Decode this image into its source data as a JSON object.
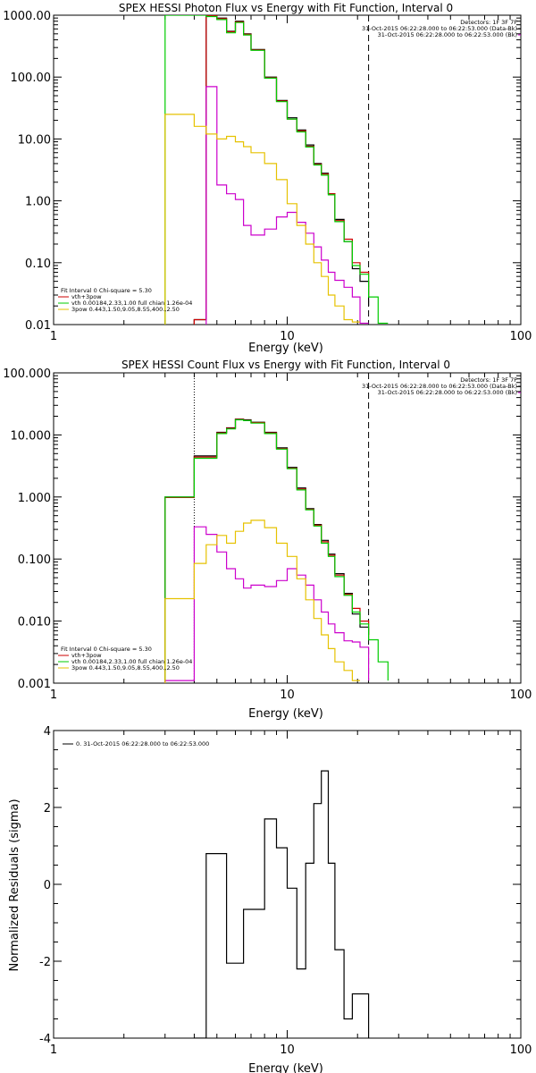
{
  "figure": {
    "tick_labels_x": [
      "1",
      "10",
      "100"
    ]
  },
  "chart_data": [
    {
      "type": "line",
      "title": "SPEX HESSI Photon Flux vs Energy with Fit Function, Interval 0",
      "xlabel": "Energy (keV)",
      "ylabel": "",
      "xscale": "log",
      "yscale": "log",
      "xlim": [
        1,
        100
      ],
      "ylim": [
        0.01,
        1000
      ],
      "yticks": [
        0.01,
        0.1,
        1,
        10,
        100,
        1000
      ],
      "ytick_labels": [
        "0.01",
        "0.10",
        "1.00",
        "10.00",
        "100.00",
        "1000.00"
      ],
      "vlines": [
        {
          "x": 22.3,
          "style": "dashed",
          "color": "#000000"
        }
      ],
      "info_lines": [
        "Detectors: 1F 3F 7F",
        "31-Oct-2015 06:22:28.000 to 06:22:53.000 (Data-Bk)",
        "31-Oct-2015 06:22:28.000 to 06:22:53.000 (Bk)"
      ],
      "info_colors": [
        "#000000",
        "#000000",
        "#cc00cc"
      ],
      "fit_lines": [
        "Fit Interval 0   Chi-square = 5.30",
        "vth+3pow",
        "vth 0.00184,2.33,1.00  full chian 1.26e-04",
        "3pow 0.443,1.50,9.05,8.55,400.,2.50"
      ],
      "fit_colors": [
        "#000000",
        "#cc0000",
        "#00cc00",
        "#e6c200"
      ],
      "series": [
        {
          "color": "#000000",
          "x": [
            4.0,
            4.5,
            5.0,
            5.5,
            6.0,
            6.5,
            7.0,
            8.0,
            9.0,
            10.0,
            11.0,
            12.0,
            13.0,
            14.0,
            15.0,
            16.0,
            17.5,
            19.0,
            20.5,
            22.3
          ],
          "values": [
            0.012,
            1000,
            900,
            550,
            800,
            500,
            280,
            100,
            42,
            22,
            14,
            8.0,
            4.0,
            2.8,
            1.3,
            0.5,
            0.22,
            0.08,
            0.05,
            0.02
          ]
        },
        {
          "color": "#cc0000",
          "x": [
            4.0,
            4.5,
            5.0,
            5.5,
            6.0,
            6.5,
            7.0,
            8.0,
            9.0,
            10.0,
            11.0,
            12.0,
            13.0,
            14.0,
            15.0,
            16.0,
            17.5,
            19.0,
            20.5,
            22.3
          ],
          "values": [
            0.012,
            980,
            880,
            540,
            780,
            490,
            275,
            98,
            41,
            21,
            13.5,
            7.6,
            3.9,
            2.7,
            1.3,
            0.48,
            0.24,
            0.1,
            0.07,
            0.03
          ]
        },
        {
          "color": "#00cc00",
          "x": [
            3.0,
            4.5,
            5.0,
            5.5,
            6.0,
            6.5,
            7.0,
            8.0,
            9.0,
            10.0,
            11.0,
            12.0,
            13.0,
            14.0,
            15.0,
            16.0,
            17.5,
            19.0,
            20.5,
            22.3,
            24.5,
            27.0
          ],
          "values": [
            1000,
            950,
            850,
            520,
            760,
            480,
            270,
            96,
            40,
            21,
            13,
            7.4,
            3.8,
            2.6,
            1.25,
            0.46,
            0.22,
            0.09,
            0.065,
            0.028,
            0.0105,
            0.0105
          ]
        },
        {
          "color": "#cc00cc",
          "x": [
            4.0,
            4.5,
            5.0,
            5.5,
            6.0,
            6.5,
            7.0,
            8.0,
            9.0,
            10.0,
            11.0,
            12.0,
            13.0,
            14.0,
            15.0,
            16.0,
            17.5,
            19.0,
            20.5,
            22.3
          ],
          "values": [
            0.005,
            70,
            1.8,
            1.3,
            1.05,
            0.4,
            0.28,
            0.35,
            0.55,
            0.65,
            0.45,
            0.3,
            0.18,
            0.11,
            0.07,
            0.052,
            0.04,
            0.028,
            0.0105,
            0.0105
          ]
        },
        {
          "color": "#e6c200",
          "x": [
            3.0,
            4.0,
            4.5,
            5.0,
            5.5,
            6.0,
            6.5,
            7.0,
            8.0,
            9.0,
            10.0,
            11.0,
            12.0,
            13.0,
            14.0,
            15.0,
            16.0,
            17.5,
            19.0,
            20.5
          ],
          "values": [
            25,
            16,
            12,
            10,
            11,
            9.0,
            7.5,
            6.0,
            4.0,
            2.2,
            0.9,
            0.4,
            0.2,
            0.1,
            0.06,
            0.03,
            0.02,
            0.012,
            0.011,
            0.011
          ]
        }
      ]
    },
    {
      "type": "line",
      "title": "SPEX HESSI Count Flux vs Energy with Fit Function, Interval 0",
      "xlabel": "Energy (keV)",
      "ylabel": "",
      "xscale": "log",
      "yscale": "log",
      "xlim": [
        1,
        100
      ],
      "ylim": [
        0.001,
        100
      ],
      "yticks": [
        0.001,
        0.01,
        0.1,
        1,
        10,
        100
      ],
      "ytick_labels": [
        "0.001",
        "0.010",
        "0.100",
        "1.000",
        "10.000",
        "100.000"
      ],
      "vlines": [
        {
          "x": 4.0,
          "style": "dotted",
          "color": "#000000"
        },
        {
          "x": 22.3,
          "style": "dashed",
          "color": "#000000"
        }
      ],
      "info_lines": [
        "Detectors: 1F 3F 7F",
        "31-Oct-2015 06:22:28.000 to 06:22:53.000 (Data-Bk)",
        "31-Oct-2015 06:22:28.000 to 06:22:53.000 (Bk)"
      ],
      "info_colors": [
        "#000000",
        "#000000",
        "#cc00cc"
      ],
      "fit_lines": [
        "Fit Interval 0   Chi-square = 5.30",
        "vth+3pow",
        "vth 0.00184,2.33,1.00  full chian 1.26e-04",
        "3pow 0.443,1.50,9.05,8.55,400.,2.50"
      ],
      "fit_colors": [
        "#000000",
        "#cc0000",
        "#00cc00",
        "#e6c200"
      ],
      "series": [
        {
          "color": "#000000",
          "x": [
            3.0,
            4.0,
            5.0,
            5.5,
            6.0,
            6.5,
            7.0,
            8.0,
            9.0,
            10.0,
            11.0,
            12.0,
            13.0,
            14.0,
            15.0,
            16.0,
            17.5,
            19.0,
            20.5,
            22.3
          ],
          "values": [
            1.0,
            4.6,
            11,
            13,
            18,
            17.5,
            16,
            11,
            6.2,
            3.0,
            1.4,
            0.65,
            0.36,
            0.2,
            0.12,
            0.058,
            0.028,
            0.013,
            0.008,
            0.006
          ]
        },
        {
          "color": "#cc0000",
          "x": [
            3.0,
            4.0,
            5.0,
            5.5,
            6.0,
            6.5,
            7.0,
            8.0,
            9.0,
            10.0,
            11.0,
            12.0,
            13.0,
            14.0,
            15.0,
            16.0,
            17.5,
            19.0,
            20.5,
            22.3
          ],
          "values": [
            0.98,
            4.4,
            10.8,
            12.8,
            17.8,
            17.2,
            15.8,
            10.8,
            6.0,
            2.9,
            1.35,
            0.63,
            0.35,
            0.19,
            0.115,
            0.055,
            0.027,
            0.016,
            0.01,
            0.005
          ]
        },
        {
          "color": "#00cc00",
          "x": [
            3.0,
            4.0,
            5.0,
            5.5,
            6.0,
            6.5,
            7.0,
            8.0,
            9.0,
            10.0,
            11.0,
            12.0,
            13.0,
            14.0,
            15.0,
            16.0,
            17.5,
            19.0,
            20.5,
            22.3,
            24.5,
            27.0
          ],
          "values": [
            1.0,
            4.2,
            10.5,
            12.5,
            17.5,
            17,
            15.5,
            10.5,
            5.9,
            2.85,
            1.3,
            0.62,
            0.34,
            0.18,
            0.11,
            0.052,
            0.026,
            0.014,
            0.009,
            0.005,
            0.0022,
            0.0011
          ]
        },
        {
          "color": "#cc00cc",
          "x": [
            3.0,
            4.0,
            4.5,
            5.0,
            5.5,
            6.0,
            6.5,
            7.0,
            8.0,
            9.0,
            10.0,
            11.0,
            12.0,
            13.0,
            14.0,
            15.0,
            16.0,
            17.5,
            19.0,
            20.5,
            22.3
          ],
          "values": [
            0.0011,
            0.33,
            0.25,
            0.13,
            0.07,
            0.048,
            0.034,
            0.038,
            0.036,
            0.045,
            0.07,
            0.055,
            0.038,
            0.022,
            0.014,
            0.009,
            0.0065,
            0.0048,
            0.0046,
            0.0038,
            0.0011
          ]
        },
        {
          "color": "#e6c200",
          "x": [
            3.0,
            4.0,
            4.5,
            5.0,
            5.5,
            6.0,
            6.5,
            7.0,
            8.0,
            9.0,
            10.0,
            11.0,
            12.0,
            13.0,
            14.0,
            15.0,
            16.0,
            17.5,
            19.0,
            20.5
          ],
          "values": [
            0.023,
            0.085,
            0.17,
            0.24,
            0.18,
            0.28,
            0.38,
            0.42,
            0.32,
            0.18,
            0.11,
            0.048,
            0.022,
            0.011,
            0.006,
            0.0036,
            0.0022,
            0.0016,
            0.0011,
            0.0011
          ]
        }
      ]
    },
    {
      "type": "line",
      "title": "",
      "xlabel": "Energy (keV)",
      "ylabel": "Normalized Residuals (sigma)",
      "xscale": "log",
      "yscale": "linear",
      "xlim": [
        1,
        100
      ],
      "ylim": [
        -4,
        4
      ],
      "yticks": [
        -4,
        -2,
        0,
        2,
        4
      ],
      "ytick_labels": [
        "-4",
        "-2",
        "0",
        "2",
        "4"
      ],
      "legend": "0. 31-Oct-2015 06:22:28.000 to 06:22:53.000",
      "series": [
        {
          "color": "#000000",
          "x": [
            4.0,
            4.5,
            5.0,
            5.5,
            6.0,
            6.5,
            7.0,
            8.0,
            9.0,
            10.0,
            11.0,
            12.0,
            13.0,
            14.0,
            15.0,
            16.0,
            17.5,
            19.0,
            20.5,
            22.3
          ],
          "values": [
            -4,
            0.8,
            0.8,
            -2.05,
            -2.05,
            -0.65,
            -0.65,
            1.7,
            0.95,
            -0.1,
            -2.2,
            0.55,
            2.1,
            2.95,
            0.55,
            -1.7,
            -3.5,
            -2.85,
            -2.85,
            -4
          ]
        }
      ]
    }
  ]
}
